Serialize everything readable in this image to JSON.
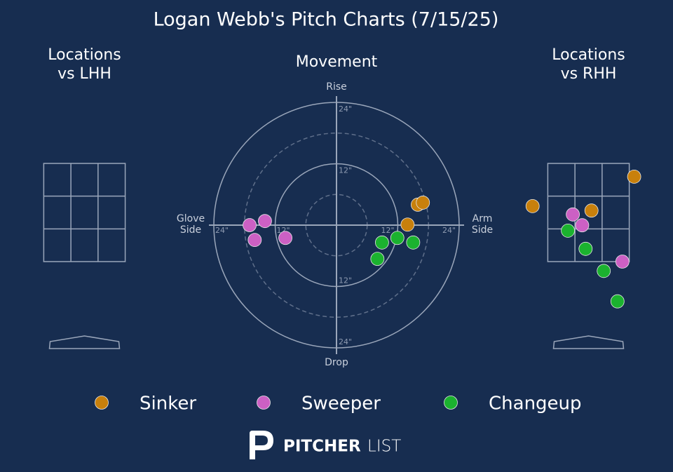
{
  "title": "Logan Webb's Pitch Charts (7/15/25)",
  "chart_data": [
    {
      "type": "movement",
      "title": "Movement",
      "labels": {
        "top": "Rise",
        "bottom": "Drop",
        "left": "Glove\nSide",
        "right": "Arm\nSide"
      },
      "rticks": [
        {
          "value": 12,
          "label": "12\""
        },
        {
          "value": 24,
          "label": "24\""
        }
      ],
      "minor_rings": [
        6,
        18
      ],
      "series": [
        {
          "name": "Sinker",
          "color": "#c8800c",
          "x": [
            15.9,
            16.9,
            13.9
          ],
          "y": [
            4.0,
            4.4,
            0.1
          ]
        },
        {
          "name": "Sweeper",
          "color": "#cc60c4",
          "x": [
            -17.0,
            -14.0,
            -16.0,
            -10.0
          ],
          "y": [
            0.0,
            0.8,
            -2.9,
            -2.5
          ]
        },
        {
          "name": "Changeup",
          "color": "#1bb22f",
          "x": [
            8.9,
            11.9,
            15.0,
            8.0
          ],
          "y": [
            -3.4,
            -2.5,
            -3.4,
            -6.6
          ]
        }
      ]
    },
    {
      "type": "location",
      "title": "Locations\nvs LHH",
      "zone": {
        "x": [
          -0.83,
          0.83
        ],
        "z": [
          1.5,
          3.5
        ]
      },
      "series": []
    },
    {
      "type": "location",
      "title": "Locations\nvs RHH",
      "zone": {
        "x": [
          -0.83,
          0.83
        ],
        "z": [
          1.5,
          3.5
        ]
      },
      "series": [
        {
          "name": "Sinker",
          "color": "#c8800c",
          "x": [
            0.93,
            -1.14,
            0.06
          ],
          "y": [
            3.23,
            2.63,
            2.54
          ]
        },
        {
          "name": "Sweeper",
          "color": "#cc60c4",
          "x": [
            -0.32,
            -0.13,
            0.69
          ],
          "y": [
            2.46,
            2.24,
            1.5
          ]
        },
        {
          "name": "Changeup",
          "color": "#1bb22f",
          "x": [
            -0.42,
            -0.06,
            0.31,
            0.59
          ],
          "y": [
            2.13,
            1.76,
            1.31,
            0.69
          ]
        }
      ]
    }
  ],
  "footer": {
    "brand_bold": "PITCHER",
    "brand_light": "LIST"
  }
}
